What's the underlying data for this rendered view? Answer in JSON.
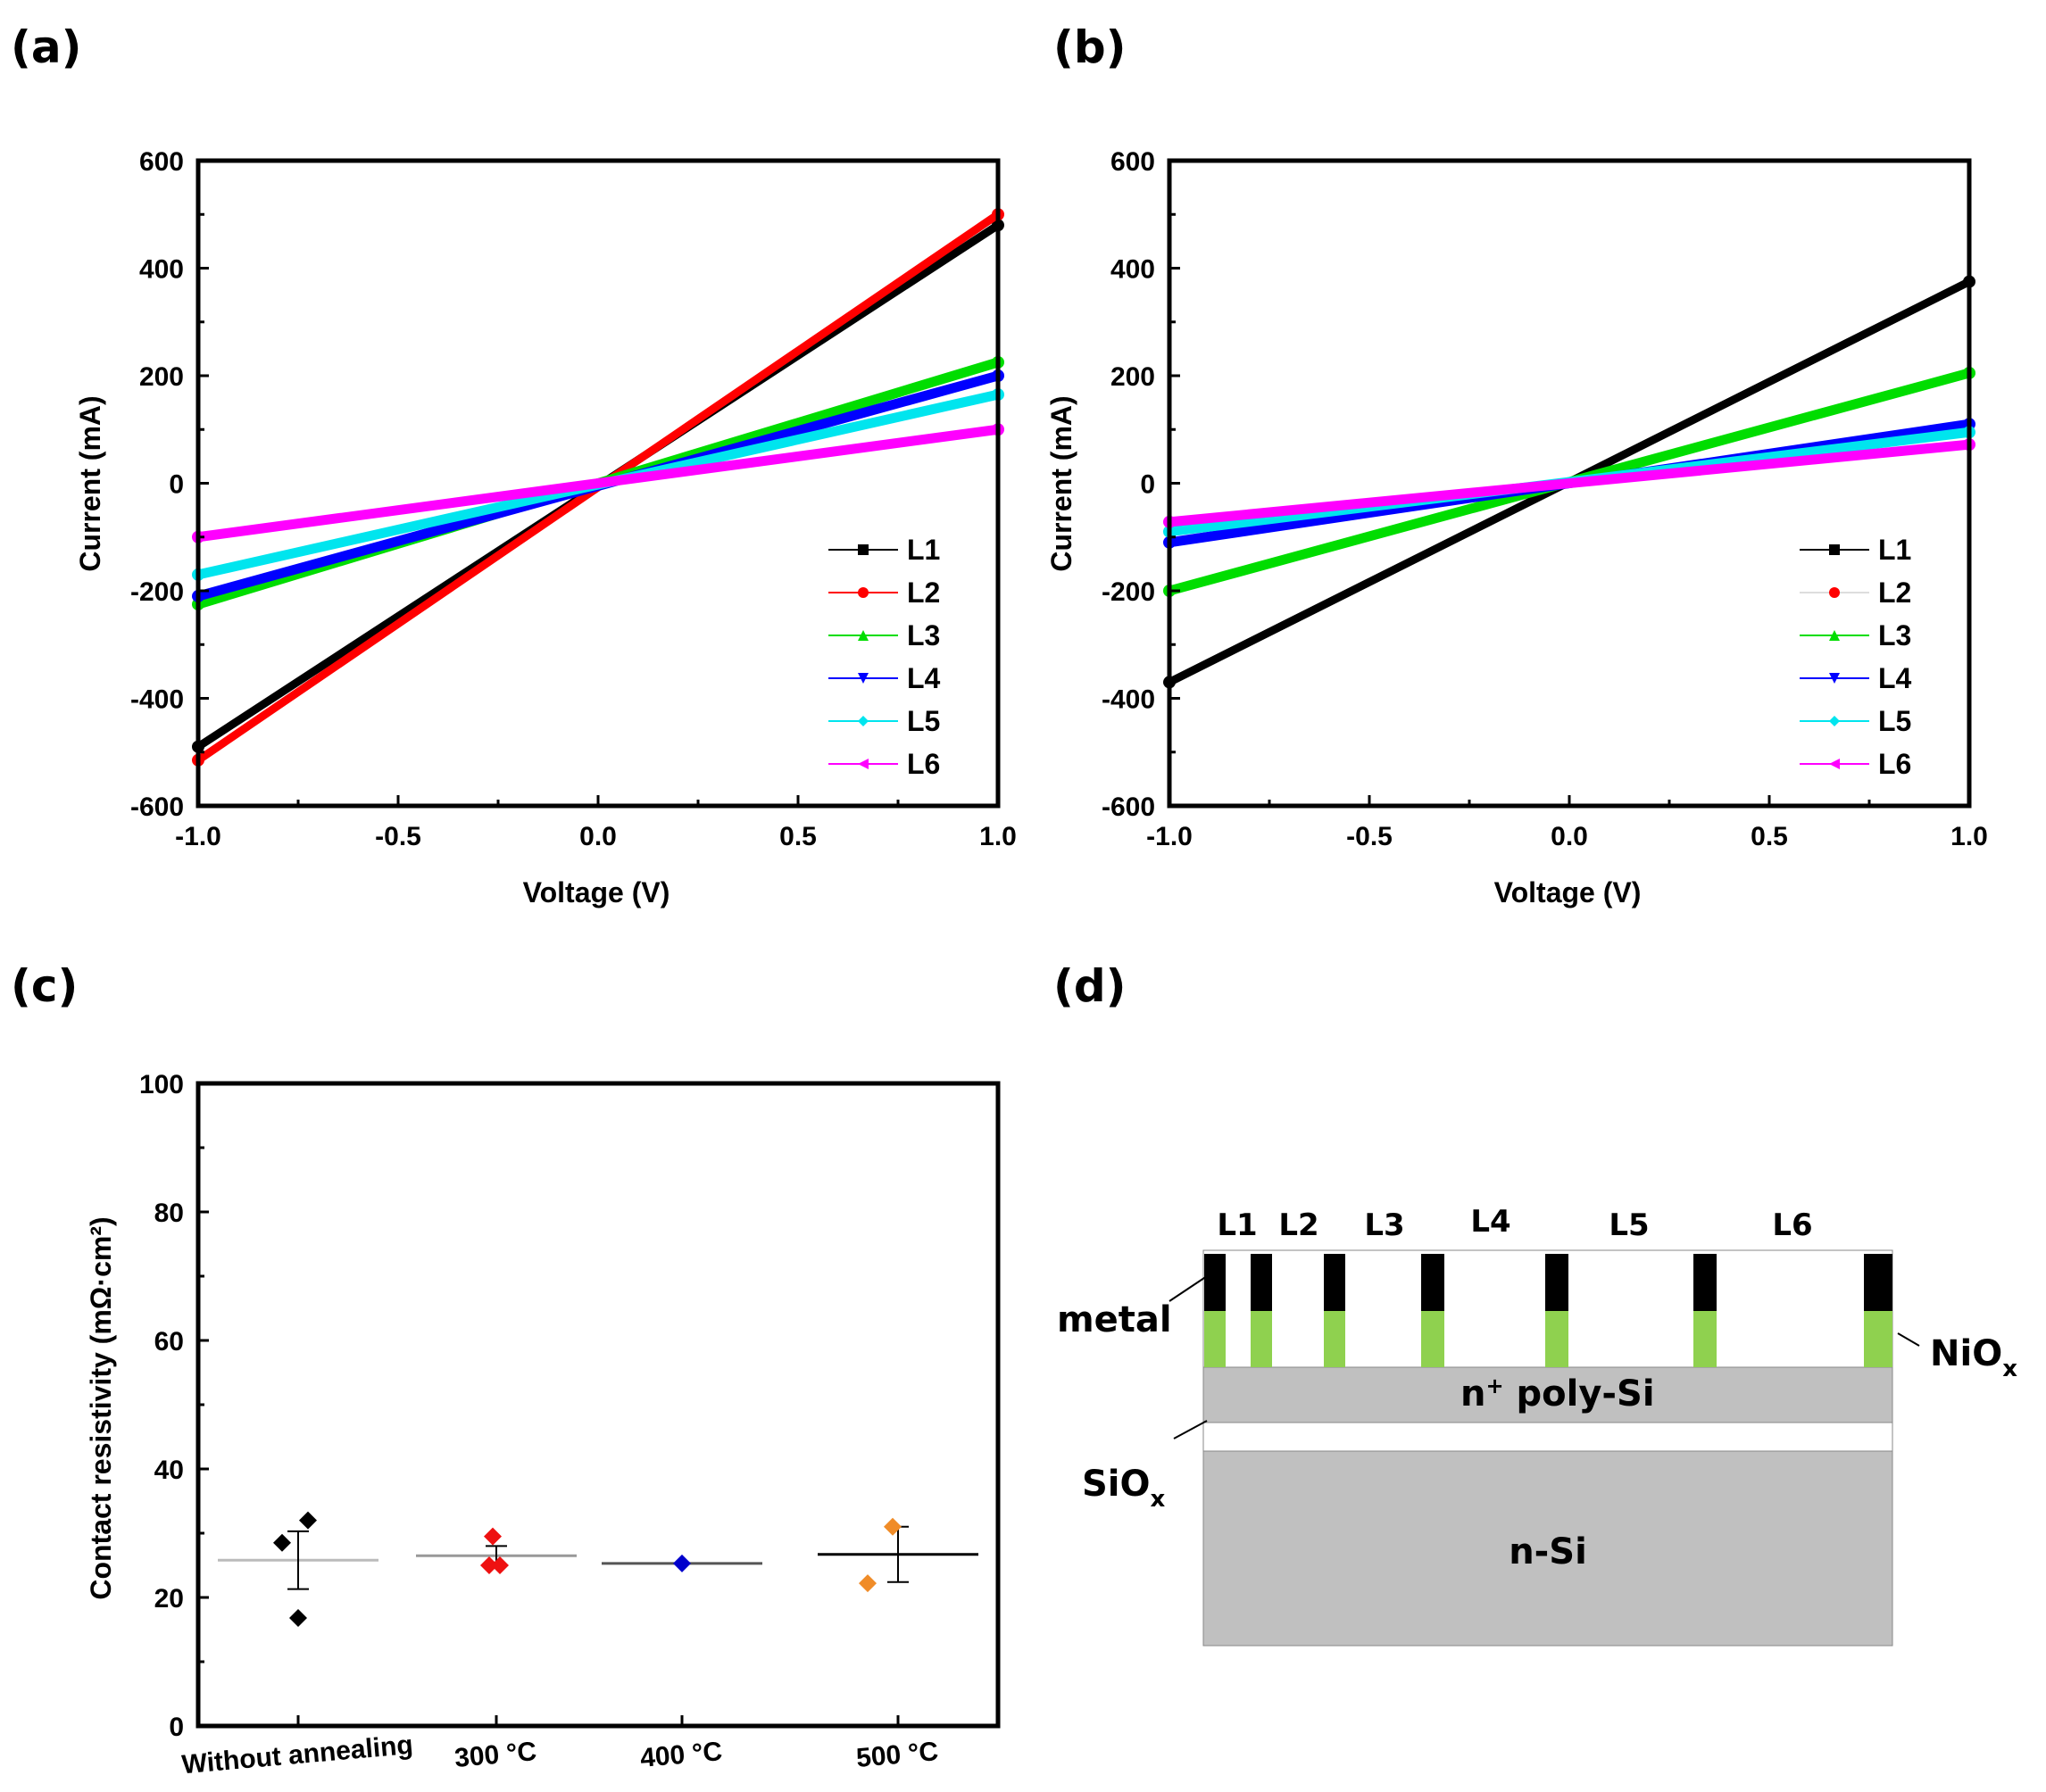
{
  "chart_data": [
    {
      "panel": "(a)",
      "type": "line",
      "xlabel": "Voltage (V)",
      "ylabel": "Current (mA)",
      "xlim": [
        -1.0,
        1.0
      ],
      "ylim": [
        -600,
        600
      ],
      "xticks": [
        "-1.0",
        "-0.5",
        "0.0",
        "0.5",
        "1.0"
      ],
      "yticks": [
        "-600",
        "-400",
        "-200",
        "0",
        "200",
        "400",
        "600"
      ],
      "legend_position": "bottom-right",
      "series": [
        {
          "name": "L1",
          "color": "#000000",
          "marker": "square",
          "x": [
            -1.0,
            1.0
          ],
          "y": [
            -490,
            480
          ]
        },
        {
          "name": "L2",
          "color": "#ff0000",
          "marker": "circle",
          "x": [
            -1.0,
            1.0
          ],
          "y": [
            -515,
            500
          ]
        },
        {
          "name": "L3",
          "color": "#00dd00",
          "marker": "triangle-up",
          "x": [
            -1.0,
            1.0
          ],
          "y": [
            -225,
            225
          ]
        },
        {
          "name": "L4",
          "color": "#0000ff",
          "marker": "triangle-down",
          "x": [
            -1.0,
            1.0
          ],
          "y": [
            -210,
            200
          ]
        },
        {
          "name": "L5",
          "color": "#00e5ee",
          "marker": "diamond",
          "x": [
            -1.0,
            1.0
          ],
          "y": [
            -170,
            165
          ]
        },
        {
          "name": "L6",
          "color": "#ff00ff",
          "marker": "triangle-left",
          "x": [
            -1.0,
            1.0
          ],
          "y": [
            -100,
            100
          ]
        }
      ]
    },
    {
      "panel": "(b)",
      "type": "line",
      "xlabel": "Voltage (V)",
      "ylabel": "Current (mA)",
      "xlim": [
        -1.0,
        1.0
      ],
      "ylim": [
        -600,
        600
      ],
      "xticks": [
        "-1.0",
        "-0.5",
        "0.0",
        "0.5",
        "1.0"
      ],
      "yticks": [
        "-600",
        "-400",
        "-200",
        "0",
        "200",
        "400",
        "600"
      ],
      "legend_position": "bottom-right",
      "series": [
        {
          "name": "L1",
          "color": "#000000",
          "marker": "square",
          "x": [
            -1.0,
            1.0
          ],
          "y": [
            -370,
            375
          ]
        },
        {
          "name": "L2",
          "color": "#ff0000",
          "marker": "circle",
          "x": [],
          "y": []
        },
        {
          "name": "L3",
          "color": "#00dd00",
          "marker": "triangle-up",
          "x": [
            -1.0,
            1.0
          ],
          "y": [
            -200,
            205
          ]
        },
        {
          "name": "L4",
          "color": "#0000ff",
          "marker": "triangle-down",
          "x": [
            -1.0,
            1.0
          ],
          "y": [
            -110,
            110
          ]
        },
        {
          "name": "L5",
          "color": "#00e5ee",
          "marker": "diamond",
          "x": [
            -1.0,
            1.0
          ],
          "y": [
            -90,
            95
          ]
        },
        {
          "name": "L6",
          "color": "#ff00ff",
          "marker": "triangle-left",
          "x": [
            -1.0,
            1.0
          ],
          "y": [
            -72,
            72
          ]
        }
      ]
    },
    {
      "panel": "(c)",
      "type": "scatter",
      "ylabel": "Contact resistivity (mΩ·cm²)",
      "ylim": [
        0,
        100
      ],
      "yticks": [
        "0",
        "20",
        "40",
        "60",
        "80",
        "100"
      ],
      "categories": [
        "Without annealing",
        "300 °C",
        "400 °C",
        "500 °C"
      ],
      "groups": [
        {
          "category": "Without annealing",
          "color": "#000000",
          "points": [
            28.5,
            32.0,
            16.8
          ],
          "mean": 25.8,
          "sd": 4.5,
          "mean_line_color": "#bbbbbb"
        },
        {
          "category": "300 °C",
          "color": "#ee1111",
          "points": [
            29.5,
            25.0,
            25.0
          ],
          "mean": 26.5,
          "sd": 1.5,
          "mean_line_color": "#999999"
        },
        {
          "category": "400 °C",
          "color": "#0000cc",
          "points": [
            25.3
          ],
          "mean": 25.3,
          "sd": 0,
          "mean_line_color": "#555555"
        },
        {
          "category": "500 °C",
          "color": "#f08c28",
          "points": [
            31.0,
            22.2
          ],
          "mean": 26.7,
          "sd": 4.3,
          "mean_line_color": "#000000"
        }
      ]
    }
  ],
  "panels": {
    "a": "(a)",
    "b": "(b)",
    "c": "(c)",
    "d": "(d)"
  },
  "diagram": {
    "gap_labels": [
      "L1",
      "L2",
      "L3",
      "L4",
      "L5",
      "L6"
    ],
    "metal_label": "metal",
    "nio_label": "NiO",
    "nio_sub": "x",
    "npoly_sup": "+",
    "npoly_label": "n",
    "npoly_rest": " poly-Si",
    "siox_label": "SiO",
    "siox_sub": "x",
    "nsi_label": "n-Si",
    "colors": {
      "metal": "#000000",
      "nio": "#8fd14f",
      "silicon": "#c0c0c0"
    }
  }
}
